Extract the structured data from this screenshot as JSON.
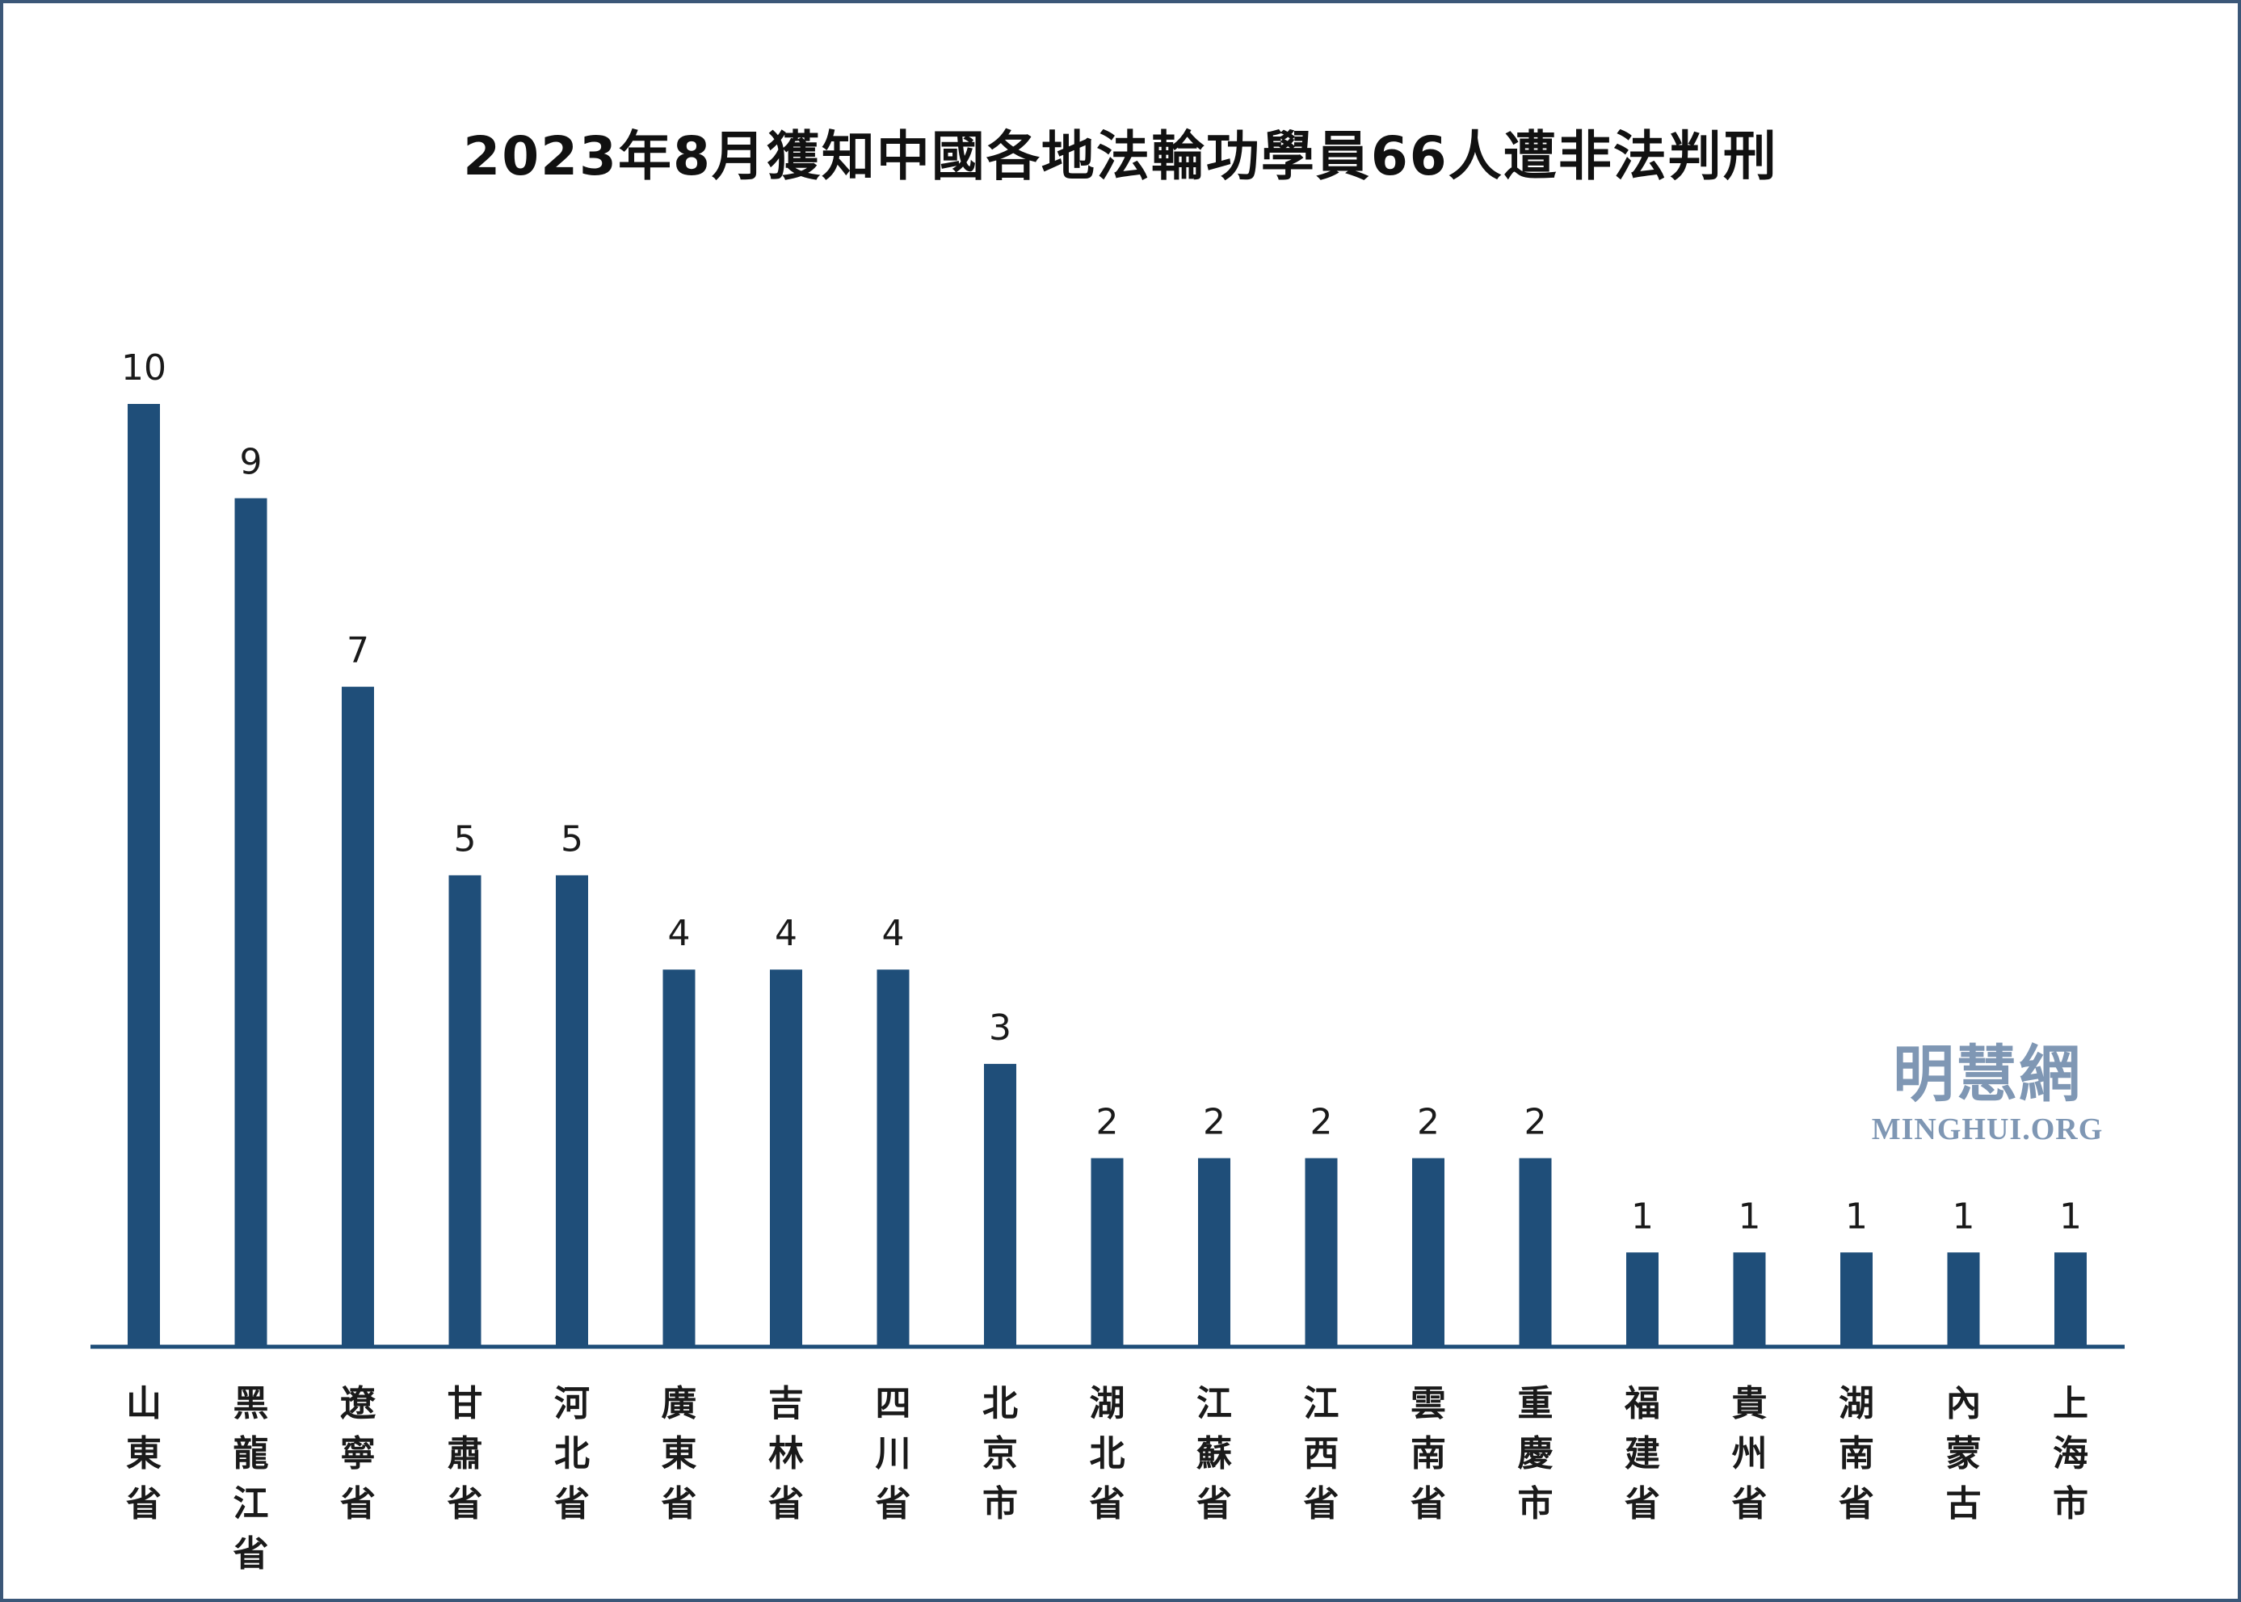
{
  "chart_data": {
    "type": "bar",
    "title": "2023年8月獲知中國各地法輪功學員66人遭非法判刑",
    "xlabel": "",
    "ylabel": "",
    "ylim": [
      0,
      10
    ],
    "grid": false,
    "legend": "none",
    "bar_color": "#1f4e79",
    "axis_color": "#1f4e79",
    "categories": [
      "山東省",
      "黑龍江省",
      "遼寧省",
      "甘肅省",
      "河北省",
      "廣東省",
      "吉林省",
      "四川省",
      "北京市",
      "湖北省",
      "江蘇省",
      "江西省",
      "雲南省",
      "重慶市",
      "福建省",
      "貴州省",
      "湖南省",
      "內蒙古",
      "上海市"
    ],
    "values": [
      10,
      9,
      7,
      5,
      5,
      4,
      4,
      4,
      3,
      2,
      2,
      2,
      2,
      2,
      1,
      1,
      1,
      1,
      1
    ]
  },
  "watermark": {
    "chinese": "明慧網",
    "english": "MINGHUI.ORG",
    "color": "#7f97b4"
  }
}
